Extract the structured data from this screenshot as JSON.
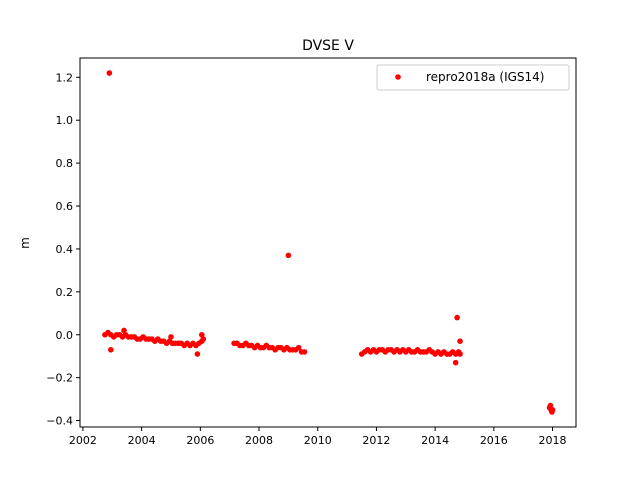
{
  "chart_data": {
    "type": "scatter",
    "title": "DVSE V",
    "xlabel": "",
    "ylabel": "m",
    "xlim": [
      2001.9,
      2018.8
    ],
    "ylim": [
      -0.43,
      1.29
    ],
    "xticks": [
      2002,
      2004,
      2006,
      2008,
      2010,
      2012,
      2014,
      2016,
      2018
    ],
    "xtick_labels": [
      "2002",
      "2004",
      "2006",
      "2008",
      "2010",
      "2012",
      "2014",
      "2016",
      "2018"
    ],
    "yticks": [
      -0.4,
      -0.2,
      0.0,
      0.2,
      0.4,
      0.6,
      0.8,
      1.0,
      1.2
    ],
    "ytick_labels": [
      "−0.4",
      "−0.2",
      "0.0",
      "0.2",
      "0.4",
      "0.6",
      "0.8",
      "1.0",
      "1.2"
    ],
    "grid": false,
    "legend": {
      "position": "top-right"
    },
    "series": [
      {
        "name": "repro2018a (IGS14)",
        "color": "#ff0000",
        "marker": "circle",
        "x": [
          2002.75,
          2002.85,
          2002.95,
          2003.05,
          2003.15,
          2003.25,
          2003.35,
          2003.45,
          2003.55,
          2003.65,
          2003.75,
          2003.85,
          2003.95,
          2004.05,
          2004.15,
          2004.25,
          2004.35,
          2004.45,
          2004.55,
          2004.65,
          2004.75,
          2004.85,
          2004.95,
          2005.05,
          2005.15,
          2005.25,
          2005.35,
          2005.45,
          2005.55,
          2005.65,
          2005.75,
          2005.85,
          2005.95,
          2006.05,
          2006.1,
          2002.9,
          2002.95,
          2003.4,
          2005.0,
          2005.9,
          2006.05,
          2007.15,
          2007.25,
          2007.35,
          2007.45,
          2007.55,
          2007.65,
          2007.75,
          2007.85,
          2007.95,
          2008.05,
          2008.15,
          2008.25,
          2008.35,
          2008.45,
          2008.55,
          2008.65,
          2008.75,
          2008.85,
          2008.95,
          2009.05,
          2009.15,
          2009.25,
          2009.35,
          2009.45,
          2009.55,
          2009.0,
          2011.5,
          2011.6,
          2011.7,
          2011.8,
          2011.9,
          2012.0,
          2012.1,
          2012.2,
          2012.3,
          2012.4,
          2012.5,
          2012.6,
          2012.7,
          2012.8,
          2012.9,
          2013.0,
          2013.1,
          2013.2,
          2013.3,
          2013.4,
          2013.5,
          2013.6,
          2013.7,
          2013.8,
          2013.9,
          2014.0,
          2014.1,
          2014.2,
          2014.3,
          2014.4,
          2014.5,
          2014.6,
          2014.7,
          2014.8,
          2014.85,
          2014.75,
          2014.85,
          2014.7,
          2017.9,
          2017.95,
          2018.0,
          2017.93,
          2017.98
        ],
        "y": [
          0.0,
          0.01,
          0.0,
          -0.01,
          0.0,
          0.0,
          -0.01,
          0.0,
          -0.01,
          -0.01,
          -0.01,
          -0.02,
          -0.02,
          -0.01,
          -0.02,
          -0.02,
          -0.02,
          -0.03,
          -0.02,
          -0.03,
          -0.03,
          -0.04,
          -0.03,
          -0.04,
          -0.04,
          -0.04,
          -0.04,
          -0.05,
          -0.04,
          -0.05,
          -0.04,
          -0.05,
          -0.04,
          -0.03,
          -0.02,
          1.22,
          -0.07,
          0.02,
          -0.01,
          -0.09,
          0.0,
          -0.04,
          -0.04,
          -0.05,
          -0.05,
          -0.04,
          -0.05,
          -0.05,
          -0.06,
          -0.05,
          -0.06,
          -0.06,
          -0.05,
          -0.06,
          -0.06,
          -0.07,
          -0.06,
          -0.06,
          -0.07,
          -0.06,
          -0.07,
          -0.07,
          -0.07,
          -0.06,
          -0.08,
          -0.08,
          0.37,
          -0.09,
          -0.08,
          -0.07,
          -0.08,
          -0.07,
          -0.08,
          -0.07,
          -0.07,
          -0.08,
          -0.07,
          -0.07,
          -0.08,
          -0.07,
          -0.08,
          -0.07,
          -0.08,
          -0.07,
          -0.08,
          -0.08,
          -0.07,
          -0.08,
          -0.08,
          -0.08,
          -0.07,
          -0.08,
          -0.09,
          -0.08,
          -0.09,
          -0.08,
          -0.09,
          -0.09,
          -0.08,
          -0.09,
          -0.08,
          -0.09,
          0.08,
          -0.03,
          -0.13,
          -0.34,
          -0.35,
          -0.35,
          -0.33,
          -0.36
        ]
      }
    ]
  }
}
